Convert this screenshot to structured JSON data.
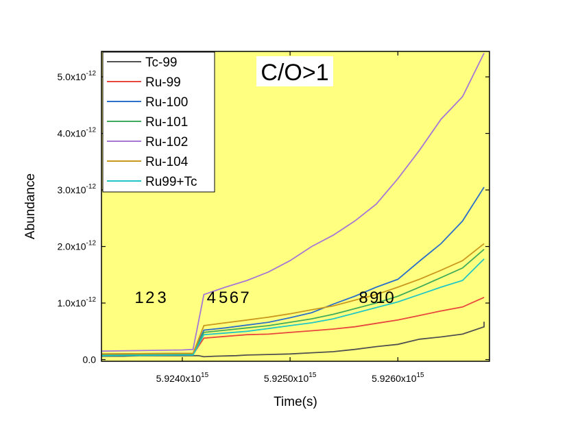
{
  "chart_data": {
    "type": "line",
    "xlabel": "Time(s)",
    "ylabel": "Abundance",
    "xlim": [
      5923250000000000.0,
      5926850000000000.0
    ],
    "ylim": [
      -3e-14,
      5.45e-12
    ],
    "x_ticks": [
      {
        "value": 5924000000000000.0,
        "mantissa": "5.9240x10",
        "exp": "15"
      },
      {
        "value": 5925000000000000.0,
        "mantissa": "5.9250x10",
        "exp": "15"
      },
      {
        "value": 5926000000000000.0,
        "mantissa": "5.9260x10",
        "exp": "15"
      }
    ],
    "y_ticks": [
      {
        "value": 0,
        "mantissa": "0.0",
        "exp": ""
      },
      {
        "value": 1e-12,
        "mantissa": "1.0x10",
        "exp": "-12"
      },
      {
        "value": 2e-12,
        "mantissa": "2.0x10",
        "exp": "-12"
      },
      {
        "value": 3e-12,
        "mantissa": "3.0x10",
        "exp": "-12"
      },
      {
        "value": 4e-12,
        "mantissa": "4.0x10",
        "exp": "-12"
      },
      {
        "value": 5e-12,
        "mantissa": "5.0x10",
        "exp": "-12"
      }
    ],
    "background": "#ffff80",
    "annotation": "C/O>1",
    "pulse_labels": [
      {
        "text": "1",
        "x": 5923600000000000.0
      },
      {
        "text": "2",
        "x": 5923700000000000.0
      },
      {
        "text": "3",
        "x": 5923810000000000.0
      },
      {
        "text": "4",
        "x": 5924270000000000.0
      },
      {
        "text": "5",
        "x": 5924380000000000.0
      },
      {
        "text": "6",
        "x": 5924480000000000.0
      },
      {
        "text": "7",
        "x": 5924580000000000.0
      },
      {
        "text": "8",
        "x": 5925680000000000.0
      },
      {
        "text": "9",
        "x": 5925780000000000.0
      },
      {
        "text": "10",
        "x": 5925880000000000.0
      }
    ],
    "legend_position": "top-left",
    "series": [
      {
        "name": "Tc-99",
        "color": "#505050",
        "points": [
          [
            5923250000000000.0,
            6e-14
          ],
          [
            5923450000000000.0,
            6e-14
          ],
          [
            5923600000000000.0,
            7e-14
          ],
          [
            5923800000000000.0,
            7e-14
          ],
          [
            5924000000000000.0,
            7e-14
          ],
          [
            5924150000000000.0,
            7e-14
          ],
          [
            5924200000000000.0,
            5e-14
          ],
          [
            5924300000000000.0,
            6e-14
          ],
          [
            5924500000000000.0,
            7e-14
          ],
          [
            5924600000000000.0,
            8e-14
          ],
          [
            5924800000000000.0,
            9e-14
          ],
          [
            5925000000000000.0,
            1e-13
          ],
          [
            5925200000000000.0,
            1.2e-13
          ],
          [
            5925400000000000.0,
            1.4e-13
          ],
          [
            5925600000000000.0,
            1.8e-13
          ],
          [
            5925800000000000.0,
            2.3e-13
          ],
          [
            5926000000000000.0,
            2.7e-13
          ],
          [
            5926200000000000.0,
            3.6e-13
          ],
          [
            5926400000000000.0,
            4e-13
          ],
          [
            5926600000000000.0,
            4.5e-13
          ],
          [
            5926800000000000.0,
            5.8e-13
          ],
          [
            5926800000000000.0,
            6.7e-13
          ]
        ]
      },
      {
        "name": "Ru-99",
        "color": "#e8453c",
        "points": [
          [
            5923250000000000.0,
            8e-14
          ],
          [
            5924000000000000.0,
            9e-14
          ],
          [
            5924100000000000.0,
            9e-14
          ],
          [
            5924200000000000.0,
            3.8e-13
          ],
          [
            5924400000000000.0,
            4.1e-13
          ],
          [
            5924600000000000.0,
            4.4e-13
          ],
          [
            5924800000000000.0,
            4.5e-13
          ],
          [
            5925000000000000.0,
            4.8e-13
          ],
          [
            5925200000000000.0,
            5.1e-13
          ],
          [
            5925400000000000.0,
            5.4e-13
          ],
          [
            5925600000000000.0,
            5.8e-13
          ],
          [
            5925800000000000.0,
            6.4e-13
          ],
          [
            5926000000000000.0,
            7e-13
          ],
          [
            5926200000000000.0,
            7.8e-13
          ],
          [
            5926400000000000.0,
            8.6e-13
          ],
          [
            5926600000000000.0,
            9.3e-13
          ],
          [
            5926800000000000.0,
            1.1e-12
          ]
        ]
      },
      {
        "name": "Ru-100",
        "color": "#2a6fc9",
        "points": [
          [
            5923250000000000.0,
            1e-13
          ],
          [
            5924000000000000.0,
            1.1e-13
          ],
          [
            5924100000000000.0,
            1.1e-13
          ],
          [
            5924200000000000.0,
            5.2e-13
          ],
          [
            5924400000000000.0,
            5.6e-13
          ],
          [
            5924600000000000.0,
            6.1e-13
          ],
          [
            5924800000000000.0,
            6.6e-13
          ],
          [
            5925000000000000.0,
            7.4e-13
          ],
          [
            5925200000000000.0,
            8.3e-13
          ],
          [
            5925400000000000.0,
            9.8e-13
          ],
          [
            5925600000000000.0,
            1.12e-12
          ],
          [
            5925800000000000.0,
            1.28e-12
          ],
          [
            5926000000000000.0,
            1.42e-12
          ],
          [
            5926200000000000.0,
            1.74e-12
          ],
          [
            5926400000000000.0,
            2.05e-12
          ],
          [
            5926600000000000.0,
            2.45e-12
          ],
          [
            5926800000000000.0,
            3.05e-12
          ]
        ]
      },
      {
        "name": "Ru-101",
        "color": "#3faa5a",
        "points": [
          [
            5923250000000000.0,
            9e-14
          ],
          [
            5924000000000000.0,
            1e-13
          ],
          [
            5924100000000000.0,
            1e-13
          ],
          [
            5924200000000000.0,
            4.8e-13
          ],
          [
            5924400000000000.0,
            5.2e-13
          ],
          [
            5924600000000000.0,
            5.6e-13
          ],
          [
            5924800000000000.0,
            6e-13
          ],
          [
            5925000000000000.0,
            6.6e-13
          ],
          [
            5925200000000000.0,
            7.2e-13
          ],
          [
            5925400000000000.0,
            8e-13
          ],
          [
            5925600000000000.0,
            9e-13
          ],
          [
            5925800000000000.0,
            1e-12
          ],
          [
            5926000000000000.0,
            1.12e-12
          ],
          [
            5926200000000000.0,
            1.28e-12
          ],
          [
            5926400000000000.0,
            1.45e-12
          ],
          [
            5926600000000000.0,
            1.62e-12
          ],
          [
            5926800000000000.0,
            1.95e-12
          ]
        ]
      },
      {
        "name": "Ru-102",
        "color": "#a676d6",
        "points": [
          [
            5923250000000000.0,
            1.5e-13
          ],
          [
            5924000000000000.0,
            1.7e-13
          ],
          [
            5924100000000000.0,
            1.8e-13
          ],
          [
            5924200000000000.0,
            1.15e-12
          ],
          [
            5924400000000000.0,
            1.28e-12
          ],
          [
            5924600000000000.0,
            1.4e-12
          ],
          [
            5924800000000000.0,
            1.55e-12
          ],
          [
            5925000000000000.0,
            1.75e-12
          ],
          [
            5925200000000000.0,
            2e-12
          ],
          [
            5925400000000000.0,
            2.2e-12
          ],
          [
            5925600000000000.0,
            2.45e-12
          ],
          [
            5925800000000000.0,
            2.75e-12
          ],
          [
            5926000000000000.0,
            3.2e-12
          ],
          [
            5926200000000000.0,
            3.7e-12
          ],
          [
            5926400000000000.0,
            4.25e-12
          ],
          [
            5926600000000000.0,
            4.65e-12
          ],
          [
            5926800000000000.0,
            5.42e-12
          ]
        ]
      },
      {
        "name": "Ru-104",
        "color": "#c9981c",
        "points": [
          [
            5923250000000000.0,
            1e-13
          ],
          [
            5924000000000000.0,
            1.1e-13
          ],
          [
            5924100000000000.0,
            1.1e-13
          ],
          [
            5924200000000000.0,
            6e-13
          ],
          [
            5924400000000000.0,
            6.5e-13
          ],
          [
            5924600000000000.0,
            7e-13
          ],
          [
            5924800000000000.0,
            7.5e-13
          ],
          [
            5925000000000000.0,
            8.1e-13
          ],
          [
            5925200000000000.0,
            8.8e-13
          ],
          [
            5925400000000000.0,
            9.5e-13
          ],
          [
            5925600000000000.0,
            1.05e-12
          ],
          [
            5925800000000000.0,
            1.15e-12
          ],
          [
            5926000000000000.0,
            1.28e-12
          ],
          [
            5926200000000000.0,
            1.42e-12
          ],
          [
            5926400000000000.0,
            1.58e-12
          ],
          [
            5926600000000000.0,
            1.75e-12
          ],
          [
            5926800000000000.0,
            2.05e-12
          ]
        ]
      },
      {
        "name": "Ru99+Tc",
        "color": "#1fc6c6",
        "points": [
          [
            5923250000000000.0,
            7e-14
          ],
          [
            5924000000000000.0,
            8e-14
          ],
          [
            5924100000000000.0,
            8e-14
          ],
          [
            5924200000000000.0,
            4.4e-13
          ],
          [
            5924400000000000.0,
            4.7e-13
          ],
          [
            5924600000000000.0,
            5e-13
          ],
          [
            5924800000000000.0,
            5.5e-13
          ],
          [
            5925000000000000.0,
            6e-13
          ],
          [
            5925200000000000.0,
            6.5e-13
          ],
          [
            5925400000000000.0,
            7.2e-13
          ],
          [
            5925600000000000.0,
            8.2e-13
          ],
          [
            5925800000000000.0,
            9.2e-13
          ],
          [
            5926000000000000.0,
            1.02e-12
          ],
          [
            5926200000000000.0,
            1.15e-12
          ],
          [
            5926400000000000.0,
            1.28e-12
          ],
          [
            5926600000000000.0,
            1.4e-12
          ],
          [
            5926800000000000.0,
            1.78e-12
          ]
        ]
      }
    ]
  }
}
